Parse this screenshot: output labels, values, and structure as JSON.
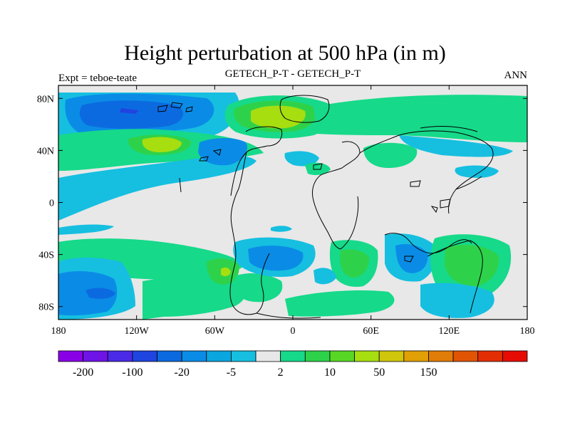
{
  "title": "Height perturbation at 500 hPa (in m)",
  "subtitle_left": "Expt = teboe-teate",
  "subtitle_center": "GETECH_P-T - GETECH_P-T",
  "subtitle_right": "ANN",
  "map": {
    "lon_range": [
      -180,
      180
    ],
    "lat_range": [
      -90,
      90
    ],
    "x_ticks": [
      {
        "value": -180,
        "label": "180"
      },
      {
        "value": -120,
        "label": "120W"
      },
      {
        "value": -60,
        "label": "60W"
      },
      {
        "value": 0,
        "label": "0"
      },
      {
        "value": 60,
        "label": "60E"
      },
      {
        "value": 120,
        "label": "120E"
      },
      {
        "value": 180,
        "label": "180"
      }
    ],
    "y_ticks": [
      {
        "value": 80,
        "label": "80N"
      },
      {
        "value": 40,
        "label": "40N"
      },
      {
        "value": 0,
        "label": "0"
      },
      {
        "value": -40,
        "label": "40S"
      },
      {
        "value": -80,
        "label": "80S"
      }
    ],
    "background_color": "#e8e8e8"
  },
  "colorbar": {
    "colors": [
      "#8a00e6",
      "#6e14e6",
      "#4a2ae6",
      "#1f44e0",
      "#0c6ae0",
      "#0a8ce6",
      "#0aa6df",
      "#16bfe0",
      "#e8e8e8",
      "#16d98a",
      "#2ed24a",
      "#58d624",
      "#a6de10",
      "#d0c60c",
      "#e0a006",
      "#e07c08",
      "#e05404",
      "#e32e04",
      "#e60c04"
    ],
    "labels": [
      {
        "index": 1,
        "text": "-200"
      },
      {
        "index": 3,
        "text": "-100"
      },
      {
        "index": 5,
        "text": "-20"
      },
      {
        "index": 7,
        "text": "-5"
      },
      {
        "index": 9,
        "text": "2"
      },
      {
        "index": 11,
        "text": "10"
      },
      {
        "index": 13,
        "text": "50"
      },
      {
        "index": 15,
        "text": "150"
      }
    ]
  }
}
